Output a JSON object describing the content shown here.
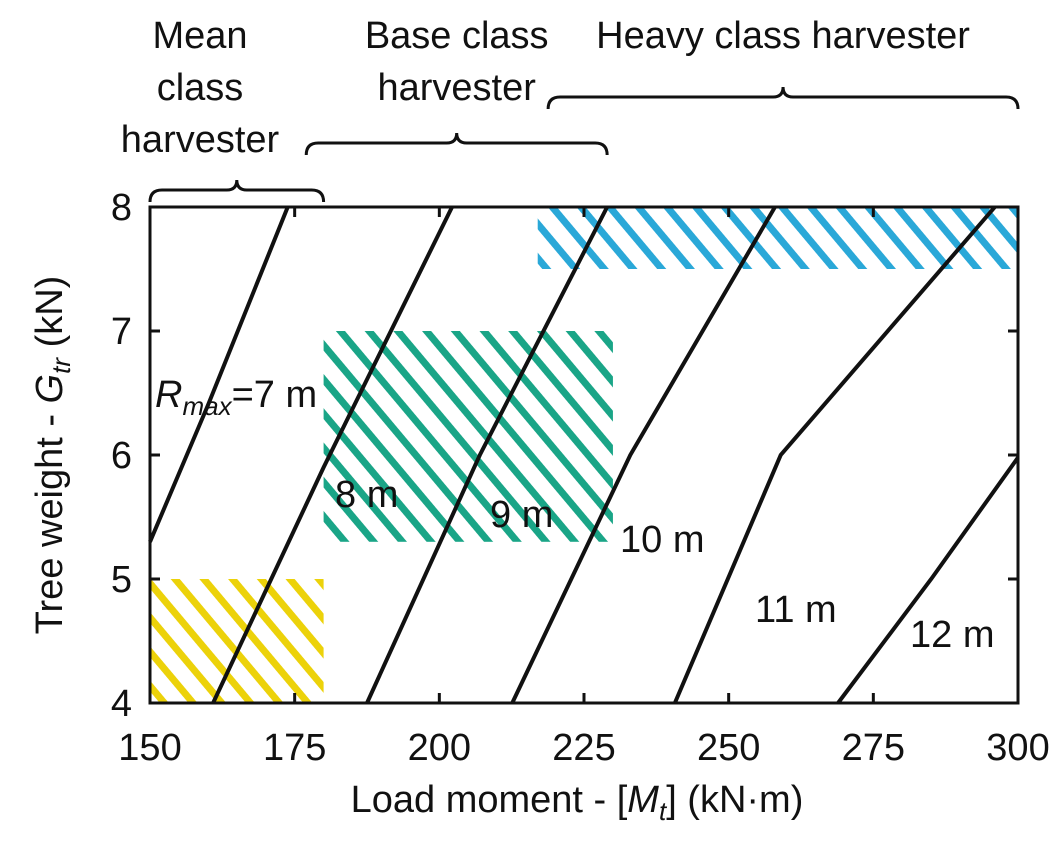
{
  "chart_data": {
    "type": "line",
    "x_label": [
      "Load moment - [",
      "M",
      "t",
      "] (kN·m)"
    ],
    "y_label": [
      "Tree weight - ",
      "G",
      "tr",
      " (kN)"
    ],
    "xlim": [
      150,
      300
    ],
    "ylim": [
      4,
      8
    ],
    "xticks": [
      150,
      175,
      200,
      225,
      250,
      275,
      300
    ],
    "yticks": [
      4,
      5,
      6,
      7,
      8
    ],
    "line_color": "#111111",
    "series": [
      {
        "name": [
          "R",
          "max",
          "=7 m"
        ],
        "x": [
          150,
          160,
          173.8
        ],
        "values": [
          5.3,
          6.4,
          8
        ]
      },
      {
        "name": [
          "8 m"
        ],
        "x": [
          160.9,
          180,
          202.2
        ],
        "values": [
          4,
          5.9,
          8
        ]
      },
      {
        "name": [
          "9 m"
        ],
        "x": [
          187.5,
          207,
          229
        ],
        "values": [
          4,
          6,
          8
        ]
      },
      {
        "name": [
          "10 m"
        ],
        "x": [
          212.6,
          233,
          258
        ],
        "values": [
          4,
          6,
          8
        ]
      },
      {
        "name": [
          "11 m"
        ],
        "x": [
          240.7,
          259,
          296
        ],
        "values": [
          4,
          6,
          8
        ]
      },
      {
        "name": [
          "12 m"
        ],
        "x": [
          268.9,
          285,
          300
        ],
        "values": [
          4,
          5,
          5.98
        ]
      }
    ],
    "regions": [
      {
        "xlim": [
          150,
          180
        ],
        "ylim": [
          4,
          5
        ],
        "color": "#ecd20a"
      },
      {
        "xlim": [
          180,
          230
        ],
        "ylim": [
          5.3,
          7
        ],
        "color": "#1aa587"
      },
      {
        "xlim": [
          217,
          300
        ],
        "ylim": [
          7.5,
          8
        ],
        "color": "#2aa8d8"
      }
    ],
    "classes": [
      {
        "label": [
          "Mean",
          "class",
          "harvester"
        ],
        "range": [
          150,
          180
        ]
      },
      {
        "label": [
          "Base class",
          "harvester"
        ],
        "range": [
          177,
          229
        ]
      },
      {
        "label": [
          "Heavy class harvester"
        ],
        "range": [
          218.8,
          300
        ]
      }
    ]
  }
}
